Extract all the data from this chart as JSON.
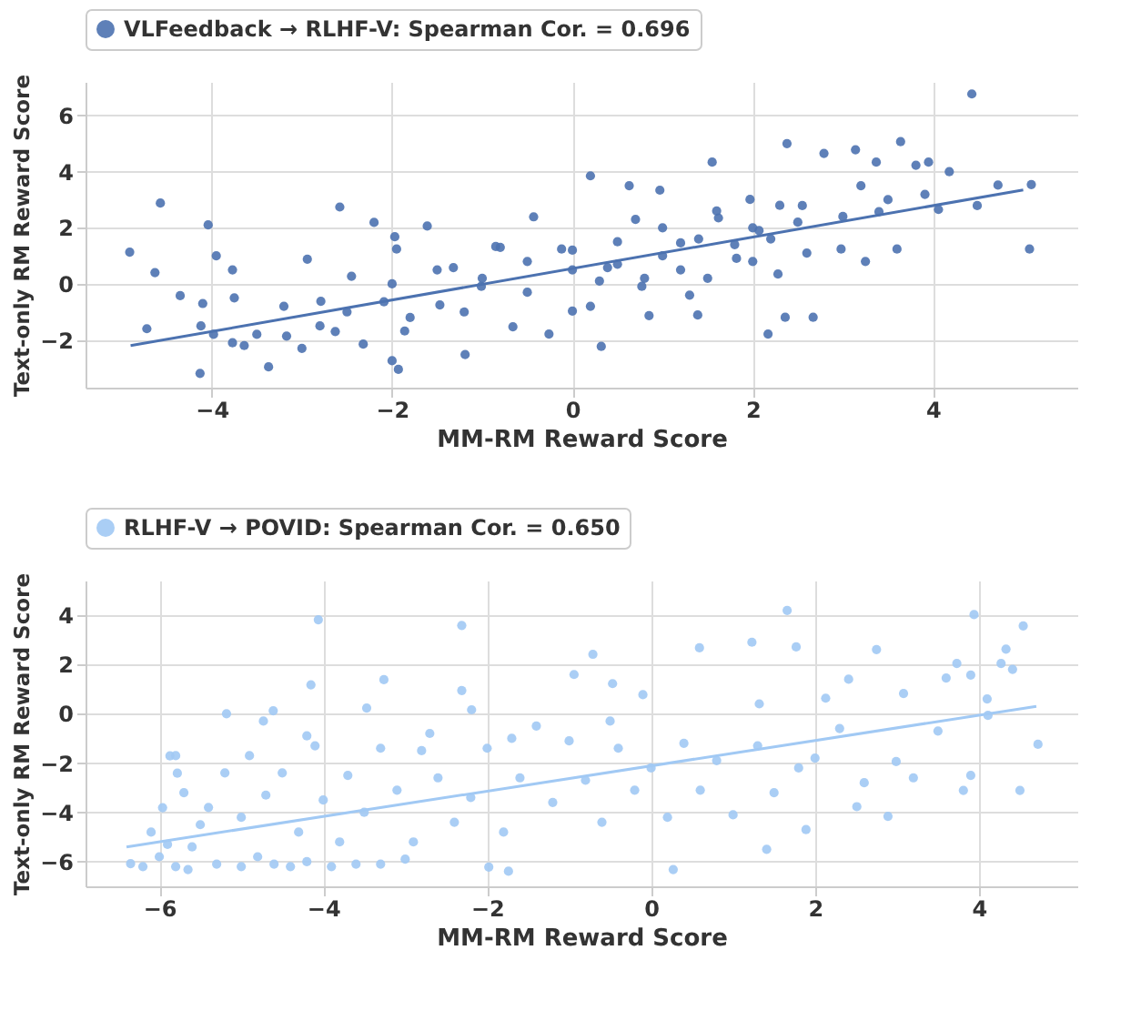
{
  "chart_data": [
    {
      "type": "scatter",
      "xlabel": "MM-RM Reward Score",
      "ylabel": "Text-only RM Reward Score",
      "xlim": [
        -5.4,
        5.6
      ],
      "ylim": [
        -3.7,
        7.2
      ],
      "xticks": [
        -4,
        -2,
        0,
        2,
        4
      ],
      "yticks": [
        -2,
        0,
        2,
        4,
        6
      ],
      "grid": true,
      "legend": "top",
      "marker": "circle",
      "series": [
        {
          "name": "VLFeedback → RLHF-V: Spearman Cor. = 0.696",
          "color": "#4c72b0",
          "x": [
            -4.91,
            -4.63,
            -4.57,
            -4.72,
            -4.35,
            -4.04,
            -4.1,
            -4.13,
            -3.95,
            -4.12,
            -3.98,
            -3.77,
            -3.75,
            -3.77,
            -3.64,
            -3.37,
            -3.17,
            -2.94,
            -2.79,
            -2.58,
            -2.63,
            -2.45,
            -2.32,
            -2.2,
            -2.09,
            -2.0,
            -1.93,
            -1.95,
            -1.97,
            -1.86,
            -1.61,
            -1.47,
            -1.32,
            -1.19,
            -1.01,
            -0.85,
            -0.66,
            -0.43,
            -0.26,
            -0.12,
            0,
            0.2,
            0.32,
            0.39,
            0.63,
            0.77,
            0.97,
            0.85,
            1.2,
            1.39,
            1.55,
            1.62,
            1.82,
            1.97,
            2.17,
            2.07,
            2.36,
            2.28,
            2.38,
            2.55,
            2.67,
            2.79,
            2.98,
            3.14,
            3.25,
            3.37,
            3.4,
            3.64,
            3.6,
            3.81,
            3.95,
            3.91,
            4.18,
            4.06,
            4.43,
            4.49,
            4.72,
            5.07,
            5.09,
            -1.5,
            -1,
            -0.5,
            -0.5,
            0,
            0,
            0.3,
            0.5,
            0.5,
            0.8,
            1,
            1,
            1.2,
            1.4,
            1.5,
            1.6,
            1.8,
            2,
            2,
            2.2,
            2.5,
            2.6,
            3,
            3.2,
            -2.5,
            -3,
            -3.5,
            -2,
            -1.2,
            0.2,
            0.7,
            1.3,
            2.3,
            3.5,
            -0.8,
            -1.8,
            -2.8,
            -3.2
          ],
          "values": [
            1.13,
            0.4,
            2.88,
            -1.6,
            -0.42,
            2.1,
            -0.7,
            -3.19,
            1.0,
            -1.5,
            -1.8,
            0.5,
            -0.5,
            -2.1,
            -2.2,
            -2.96,
            -1.86,
            0.88,
            -0.62,
            2.74,
            -1.7,
            0.27,
            -2.15,
            2.19,
            -0.64,
            -2.74,
            -3.05,
            1.24,
            1.68,
            -1.68,
            2.06,
            -0.75,
            0.58,
            -2.52,
            -0.09,
            1.33,
            -1.53,
            2.39,
            -1.79,
            1.24,
            -0.97,
            3.85,
            -2.23,
            0.58,
            3.5,
            -0.09,
            3.34,
            -1.13,
            1.46,
            -1.11,
            4.34,
            2.35,
            0.91,
            3.01,
            -1.79,
            1.9,
            -1.19,
            0.35,
            5.0,
            2.79,
            -1.19,
            4.65,
            1.24,
            4.78,
            0.8,
            4.34,
            2.57,
            5.07,
            1.24,
            4.23,
            4.34,
            3.19,
            4.0,
            2.65,
            6.77,
            2.79,
            3.52,
            1.24,
            3.54,
            0.5,
            0.2,
            0.8,
            -0.3,
            0.5,
            1.2,
            0.1,
            1.5,
            0.7,
            0.2,
            1,
            2,
            0.5,
            1.6,
            0.2,
            2.6,
            1.4,
            2,
            0.8,
            1.6,
            2.2,
            1.1,
            2.4,
            3.5,
            -1,
            -2.3,
            -1.8,
            0,
            -1,
            -0.8,
            2.3,
            -0.4,
            2.8,
            3,
            1.3,
            -1.2,
            -1.5,
            -0.8
          ]
        },
        {
          "type": "line",
          "marker": "none",
          "color": "#4c72b0",
          "x": [
            -4.9,
            5.0
          ],
          "values": [
            -2.2,
            3.35
          ]
        }
      ]
    },
    {
      "type": "scatter",
      "xlabel": "MM-RM Reward Score",
      "ylabel": "Text-only RM Reward Score",
      "xlim": [
        -6.9,
        5.2
      ],
      "ylim": [
        -7.0,
        5.4
      ],
      "xticks": [
        -6,
        -4,
        -2,
        0,
        2,
        4
      ],
      "yticks": [
        -6,
        -4,
        -2,
        0,
        2,
        4
      ],
      "grid": true,
      "legend": "top",
      "marker": "circle",
      "series": [
        {
          "name": "RLHF-V → POVID: Spearman Cor. = 0.650",
          "color": "#a1c9f4",
          "x": [
            -6.35,
            -5.96,
            -5.87,
            -5.65,
            -5.78,
            -5.18,
            -4.61,
            -4.73,
            -4.15,
            -4.06,
            -3.47,
            -3.26,
            -2.31,
            -2.31,
            -2.19,
            -1.98,
            -1.74,
            -0.94,
            -0.71,
            -0.47,
            -0.1,
            0.27,
            0.59,
            1.23,
            1.32,
            1.41,
            1.66,
            1.77,
            1.89,
            2.13,
            2.41,
            2.51,
            2.75,
            2.89,
            2.99,
            3.08,
            3.6,
            3.73,
            3.81,
            3.94,
            3.9,
            4.11,
            4.27,
            4.33,
            4.54,
            4.5,
            4.72,
            4.41,
            -6.2,
            -6,
            -5.8,
            -5.6,
            -5.5,
            -5.3,
            -5,
            -4.8,
            -4.6,
            -4.4,
            -4.2,
            -3.9,
            -3.6,
            -3.3,
            -3,
            -6.1,
            -5.9,
            -5.7,
            -5.4,
            -5.2,
            -5,
            -4.9,
            -4.7,
            -4.5,
            -4.3,
            -4.1,
            -4,
            -3.8,
            -3.7,
            -3.5,
            -3.3,
            -3.1,
            -2.9,
            -2.7,
            -2.6,
            -2.4,
            -2.2,
            -2,
            -1.8,
            -1.6,
            -1.4,
            -1.2,
            -1,
            -0.8,
            -0.6,
            -0.4,
            -0.2,
            0,
            0.2,
            0.4,
            0.6,
            0.8,
            1,
            1.3,
            1.5,
            1.8,
            2,
            2.3,
            2.6,
            3.2,
            3.5,
            3.9,
            4.1,
            -5.8,
            -4.2,
            -2.8,
            -1.7,
            -0.5
          ],
          "values": [
            -6.08,
            -3.81,
            -1.71,
            -6.32,
            -2.41,
            0.0,
            0.12,
            -0.3,
            1.17,
            3.81,
            0.23,
            1.38,
            3.58,
            0.94,
            0.16,
            -6.22,
            -6.39,
            1.59,
            2.41,
            1.22,
            0.77,
            -6.32,
            2.67,
            2.9,
            0.4,
            -5.5,
            4.19,
            2.71,
            -4.7,
            0.63,
            1.4,
            -3.77,
            2.6,
            -4.16,
            -1.94,
            0.82,
            1.45,
            2.04,
            -3.11,
            4.02,
            1.57,
            -0.07,
            2.04,
            2.62,
            3.56,
            -3.11,
            -1.24,
            1.8,
            -6.2,
            -5.8,
            -6.2,
            -5.4,
            -4.5,
            -6.1,
            -6.2,
            -5.8,
            -6.1,
            -6.2,
            -6,
            -6.2,
            -6.1,
            -6.1,
            -5.9,
            -4.8,
            -5.3,
            -3.2,
            -3.8,
            -2.4,
            -4.2,
            -1.7,
            -3.3,
            -2.4,
            -4.8,
            -1.3,
            -3.5,
            -5.2,
            -2.5,
            -4,
            -1.4,
            -3.1,
            -5.2,
            -0.8,
            -2.6,
            -4.4,
            -3.4,
            -1.4,
            -4.8,
            -2.6,
            -0.5,
            -3.6,
            -1.1,
            -2.7,
            -4.4,
            -1.4,
            -3.1,
            -2.2,
            -4.2,
            -1.2,
            -3.1,
            -1.9,
            -4.1,
            -1.3,
            -3.2,
            -2.2,
            -1.8,
            -0.6,
            -2.8,
            -2.6,
            -0.7,
            -2.5,
            0.6,
            -1.7,
            -0.9,
            -1.5,
            -1,
            -0.3
          ]
        },
        {
          "type": "line",
          "marker": "none",
          "color": "#a1c9f4",
          "x": [
            -6.4,
            4.7
          ],
          "values": [
            -5.4,
            0.3
          ]
        }
      ]
    }
  ]
}
